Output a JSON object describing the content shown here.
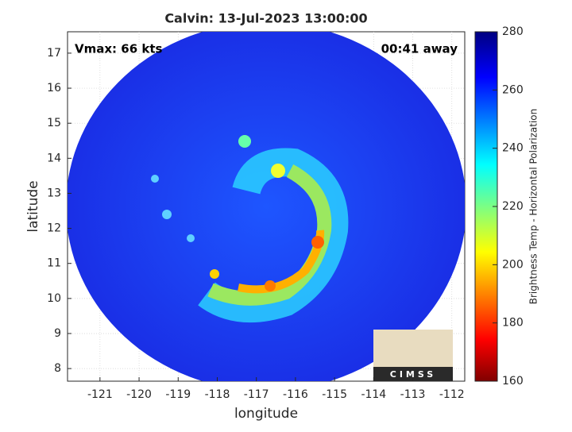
{
  "chart_data": {
    "type": "heatmap",
    "title": "Calvin: 13-Jul-2023 13:00:00",
    "annotations": [
      "Vmax: 66 kts",
      "00:41 away"
    ],
    "xlabel": "longitude",
    "ylabel": "latitude",
    "xlim": [
      -121.83,
      -111.67
    ],
    "xticks": [
      -121,
      -120,
      -119,
      -118,
      -117,
      -116,
      -115,
      -114,
      -113,
      -112
    ],
    "ylim": [
      7.64,
      17.61
    ],
    "yticks": [
      8,
      9,
      10,
      11,
      12,
      13,
      14,
      15,
      16,
      17
    ],
    "grid": true,
    "colorbar": {
      "label": "Brightness Temp - Horizontal Polarization",
      "lim": [
        160,
        280
      ],
      "ticks": [
        160,
        180,
        200,
        220,
        240,
        260,
        280
      ]
    },
    "logo": "CIMSS"
  }
}
